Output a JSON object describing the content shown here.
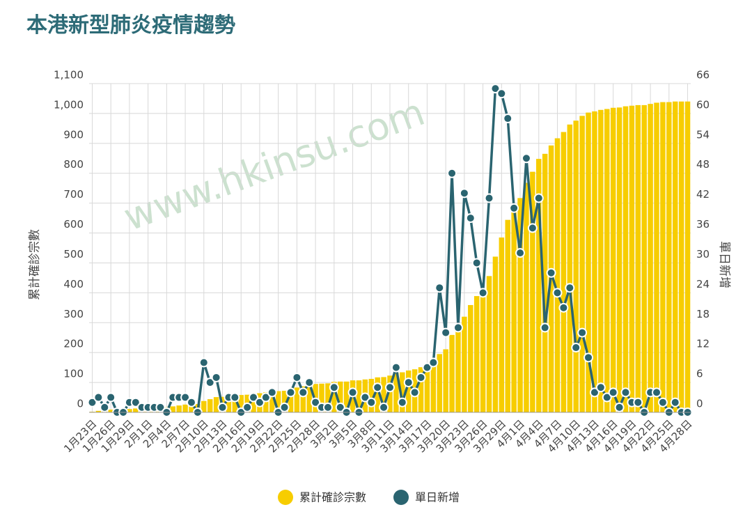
{
  "chart_data": {
    "type": "bar-line",
    "title": "本港新型肺炎疫情趨勢",
    "watermark": "www.hkinsu.com",
    "y_label": "累計確診宗數",
    "y2_label": "單日新增",
    "categories": [
      "1月23日",
      null,
      null,
      "1月26日",
      null,
      null,
      "1月29日",
      null,
      null,
      "2月1日",
      null,
      null,
      "2月4日",
      null,
      null,
      "2月7日",
      null,
      null,
      "2月10日",
      null,
      null,
      "2月13日",
      null,
      null,
      "2月16日",
      null,
      null,
      "2月19日",
      null,
      null,
      "2月22日",
      null,
      null,
      "2月25日",
      null,
      null,
      "2月28日",
      null,
      null,
      "3月2日",
      null,
      null,
      "3月5日",
      null,
      null,
      "3月8日",
      null,
      null,
      "3月11日",
      null,
      null,
      "3月14日",
      null,
      null,
      "3月17日",
      null,
      null,
      "3月20日",
      null,
      null,
      "3月23日",
      null,
      null,
      "3月26日",
      null,
      null,
      "3月29日",
      null,
      null,
      "4月1日",
      null,
      null,
      "4月4日",
      null,
      null,
      "4月7日",
      null,
      null,
      "4月10日",
      null,
      null,
      "4月13日",
      null,
      null,
      "4月16日",
      null,
      null,
      "4月19日",
      null,
      null,
      "4月22日",
      null,
      null,
      "4月25日",
      null,
      null,
      "4月28日"
    ],
    "series": [
      {
        "name": "累計確診宗數",
        "color": "#f7cd00",
        "axis": "y",
        "values": [
          2,
          5,
          6,
          9,
          9,
          9,
          11,
          13,
          14,
          15,
          16,
          17,
          17,
          20,
          23,
          26,
          28,
          28,
          38,
          44,
          51,
          52,
          55,
          58,
          58,
          59,
          62,
          64,
          67,
          71,
          71,
          72,
          76,
          83,
          87,
          93,
          95,
          96,
          97,
          102,
          103,
          103,
          107,
          107,
          110,
          112,
          117,
          118,
          123,
          132,
          134,
          140,
          144,
          151,
          160,
          170,
          195,
          211,
          259,
          276,
          320,
          359,
          389,
          413,
          456,
          521,
          585,
          644,
          685,
          717,
          768,
          805,
          848,
          865,
          893,
          917,
          938,
          963,
          976,
          992,
          1003,
          1007,
          1012,
          1015,
          1019,
          1020,
          1024,
          1026,
          1028,
          1028,
          1032,
          1036,
          1038,
          1038,
          1040,
          1040,
          1040
        ]
      },
      {
        "name": "單日新增",
        "color": "#2a6470",
        "axis": "y2",
        "values": [
          2,
          3,
          1,
          3,
          0,
          0,
          2,
          2,
          1,
          1,
          1,
          1,
          0,
          3,
          3,
          3,
          2,
          0,
          10,
          6,
          7,
          1,
          3,
          3,
          0,
          1,
          3,
          2,
          3,
          4,
          0,
          1,
          4,
          7,
          4,
          6,
          2,
          1,
          1,
          5,
          1,
          0,
          4,
          0,
          3,
          2,
          5,
          1,
          5,
          9,
          2,
          6,
          4,
          7,
          9,
          10,
          25,
          16,
          48,
          17,
          44,
          39,
          30,
          24,
          43,
          65,
          64,
          59,
          41,
          32,
          51,
          37,
          43,
          17,
          28,
          24,
          21,
          25,
          13,
          16,
          11,
          4,
          5,
          3,
          4,
          1,
          4,
          2,
          2,
          0,
          4,
          4,
          2,
          0,
          2,
          0,
          0
        ]
      }
    ],
    "ylim": [
      0,
      1100
    ],
    "yticks": [
      0,
      100,
      200,
      300,
      400,
      500,
      600,
      700,
      800,
      900,
      {
        "value": 1000,
        "label": "1,000"
      },
      {
        "value": 1100,
        "label": "1,100"
      }
    ],
    "y2lim": [
      0,
      66
    ],
    "y2ticks": [
      0,
      6,
      12,
      18,
      24,
      30,
      36,
      42,
      48,
      54,
      60,
      66
    ],
    "grid": true
  }
}
